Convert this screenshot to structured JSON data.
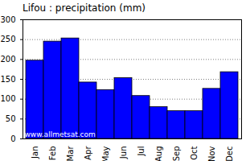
{
  "chart_data": {
    "type": "bar",
    "title": "Lifou : precipitation (mm)",
    "categories": [
      "Jan",
      "Feb",
      "Mar",
      "Apr",
      "May",
      "Jun",
      "Jul",
      "Aug",
      "Sep",
      "Oct",
      "Nov",
      "Dec"
    ],
    "values": [
      197,
      245,
      253,
      142,
      123,
      153,
      108,
      80,
      70,
      70,
      126,
      168
    ],
    "color": "#0000ff",
    "ylim": [
      0,
      300
    ],
    "yticks": [
      0,
      50,
      100,
      150,
      200,
      250,
      300
    ],
    "grid": true,
    "annotations": [
      "www.allmetsat.com"
    ]
  }
}
